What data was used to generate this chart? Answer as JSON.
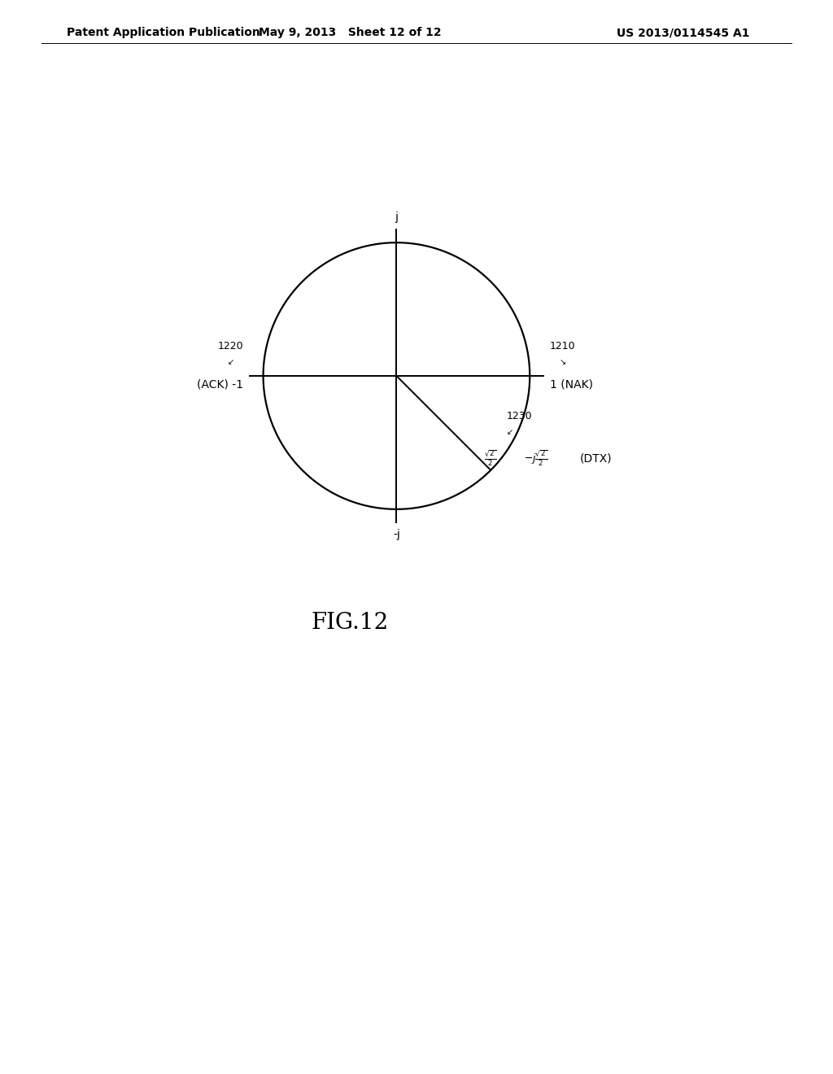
{
  "fig_width": 10.24,
  "fig_height": 13.2,
  "dpi": 100,
  "bg_color": "#ffffff",
  "header_left": "Patent Application Publication",
  "header_mid": "May 9, 2013   Sheet 12 of 12",
  "header_right": "US 2013/0114545 A1",
  "fig_label": "FIG.12",
  "axis_color": "#000000",
  "circle_color": "#000000",
  "line_color": "#000000",
  "text_color": "#000000",
  "font_size_header": 10,
  "font_size_label": 10,
  "font_size_ref": 9,
  "font_size_fig": 20
}
